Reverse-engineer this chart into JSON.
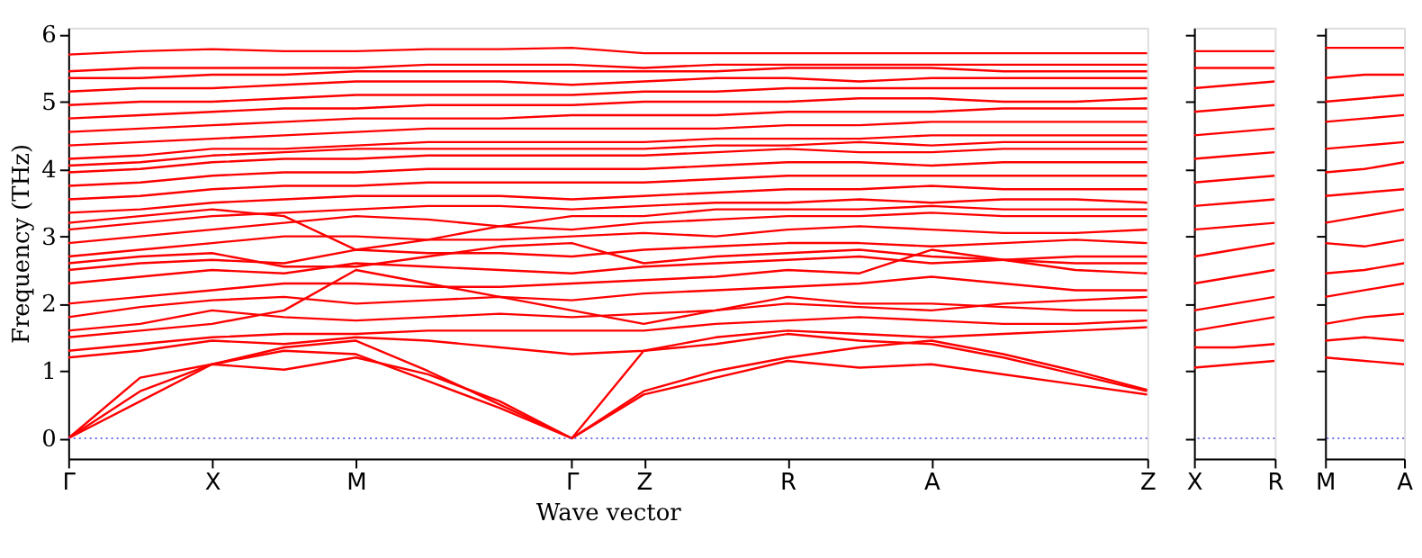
{
  "chart_data": [
    {
      "type": "line",
      "xlabel": "Wave vector",
      "ylabel": "Frequency (THz)",
      "categories": [
        "Γ",
        null,
        "X",
        null,
        "M",
        null,
        null,
        "Γ",
        "Z",
        null,
        "R",
        null,
        "A",
        null,
        null,
        "Z"
      ],
      "ylim": [
        -0.3,
        6.1
      ],
      "yticks": [
        0,
        1,
        2,
        3,
        4,
        5,
        6
      ],
      "line_style": "solid",
      "ref_lines": [
        {
          "axis": "y",
          "value": 0,
          "color": "#4444dd",
          "line_style": "dotted"
        }
      ],
      "series": [
        {
          "color": "#ff0000",
          "values": [
            0,
            0.55,
            1.1,
            1.02,
            1.2,
            0.95,
            0.55,
            0,
            0.65,
            0.9,
            1.15,
            1.05,
            1.1,
            0.95,
            0.8,
            0.65
          ]
        },
        {
          "color": "#ff0000",
          "values": [
            0,
            0.9,
            1.1,
            1.3,
            1.25,
            0.85,
            0.45,
            0,
            1.3,
            1.4,
            1.55,
            1.45,
            1.4,
            1.2,
            0.95,
            0.7
          ]
        },
        {
          "color": "#ff0000",
          "values": [
            0,
            0.7,
            1.1,
            1.35,
            1.45,
            1.0,
            0.5,
            0,
            0.7,
            1.0,
            1.2,
            1.35,
            1.45,
            1.25,
            1.0,
            0.72
          ]
        },
        {
          "color": "#ff0000",
          "values": [
            1.2,
            1.3,
            1.45,
            1.4,
            1.5,
            1.45,
            1.35,
            1.25,
            1.3,
            1.5,
            1.6,
            1.55,
            1.5,
            1.55,
            1.6,
            1.65
          ]
        },
        {
          "color": "#ff0000",
          "values": [
            1.3,
            1.4,
            1.5,
            1.55,
            1.55,
            1.6,
            1.6,
            1.6,
            1.6,
            1.7,
            1.75,
            1.8,
            1.75,
            1.7,
            1.7,
            1.75
          ]
        },
        {
          "color": "#ff0000",
          "values": [
            1.6,
            1.7,
            1.9,
            1.8,
            1.75,
            1.8,
            1.85,
            1.8,
            1.85,
            1.9,
            2.0,
            1.95,
            1.9,
            2.0,
            2.05,
            2.1
          ]
        },
        {
          "color": "#ff0000",
          "values": [
            1.8,
            1.95,
            2.05,
            2.1,
            2.0,
            2.05,
            2.1,
            2.05,
            2.15,
            2.2,
            2.25,
            2.3,
            2.4,
            2.3,
            2.2,
            2.2
          ]
        },
        {
          "color": "#ff0000",
          "values": [
            2.0,
            2.1,
            2.2,
            2.3,
            2.3,
            2.25,
            2.25,
            2.3,
            2.35,
            2.4,
            2.5,
            2.45,
            2.8,
            2.65,
            2.5,
            2.45
          ]
        },
        {
          "color": "#ff0000",
          "values": [
            2.3,
            2.4,
            2.5,
            2.45,
            2.6,
            2.55,
            2.5,
            2.45,
            2.55,
            2.6,
            2.65,
            2.7,
            2.6,
            2.65,
            2.7,
            2.7
          ]
        },
        {
          "color": "#ff0000",
          "values": [
            2.5,
            2.6,
            2.65,
            2.6,
            2.8,
            2.75,
            2.75,
            2.7,
            2.8,
            2.85,
            2.9,
            2.9,
            2.85,
            2.9,
            2.95,
            2.9
          ]
        },
        {
          "color": "#ff0000",
          "values": [
            2.7,
            2.8,
            2.9,
            3.0,
            3.0,
            2.95,
            2.95,
            3.0,
            3.05,
            3.0,
            3.1,
            3.15,
            3.1,
            3.05,
            3.05,
            3.1
          ]
        },
        {
          "color": "#ff0000",
          "values": [
            2.9,
            3.0,
            3.1,
            3.2,
            3.3,
            3.25,
            3.15,
            3.1,
            3.2,
            3.25,
            3.3,
            3.3,
            3.35,
            3.3,
            3.3,
            3.3
          ]
        },
        {
          "color": "#ff0000",
          "values": [
            3.1,
            3.2,
            3.3,
            3.35,
            3.4,
            3.45,
            3.45,
            3.4,
            3.45,
            3.5,
            3.5,
            3.55,
            3.5,
            3.55,
            3.55,
            3.5
          ]
        },
        {
          "color": "#ff0000",
          "values": [
            3.35,
            3.4,
            3.5,
            3.55,
            3.6,
            3.6,
            3.6,
            3.55,
            3.6,
            3.65,
            3.7,
            3.7,
            3.75,
            3.7,
            3.7,
            3.7
          ]
        },
        {
          "color": "#ff0000",
          "values": [
            3.55,
            3.6,
            3.7,
            3.75,
            3.75,
            3.8,
            3.8,
            3.8,
            3.8,
            3.85,
            3.9,
            3.9,
            3.9,
            3.9,
            3.9,
            3.9
          ]
        },
        {
          "color": "#ff0000",
          "values": [
            3.75,
            3.8,
            3.9,
            3.95,
            3.95,
            4.0,
            4.0,
            4.0,
            4.0,
            4.05,
            4.1,
            4.1,
            4.05,
            4.1,
            4.1,
            4.1
          ]
        },
        {
          "color": "#ff0000",
          "values": [
            3.95,
            4.0,
            4.1,
            4.15,
            4.15,
            4.2,
            4.2,
            4.2,
            4.2,
            4.25,
            4.3,
            4.25,
            4.25,
            4.3,
            4.3,
            4.3
          ]
        },
        {
          "color": "#ff0000",
          "values": [
            4.15,
            4.2,
            4.3,
            4.3,
            4.35,
            4.4,
            4.4,
            4.4,
            4.4,
            4.45,
            4.45,
            4.45,
            4.5,
            4.5,
            4.5,
            4.5
          ]
        },
        {
          "color": "#ff0000",
          "values": [
            4.35,
            4.4,
            4.45,
            4.5,
            4.55,
            4.6,
            4.6,
            4.6,
            4.6,
            4.6,
            4.65,
            4.65,
            4.7,
            4.7,
            4.7,
            4.7
          ]
        },
        {
          "color": "#ff0000",
          "values": [
            4.55,
            4.6,
            4.65,
            4.7,
            4.75,
            4.75,
            4.75,
            4.8,
            4.8,
            4.8,
            4.85,
            4.85,
            4.85,
            4.9,
            4.9,
            4.9
          ]
        },
        {
          "color": "#ff0000",
          "values": [
            4.75,
            4.8,
            4.85,
            4.9,
            4.9,
            4.95,
            4.95,
            4.95,
            5.0,
            5.0,
            5.0,
            5.05,
            5.05,
            5.0,
            5.0,
            5.05
          ]
        },
        {
          "color": "#ff0000",
          "values": [
            4.95,
            5.0,
            5.0,
            5.05,
            5.1,
            5.1,
            5.1,
            5.1,
            5.15,
            5.15,
            5.2,
            5.2,
            5.2,
            5.2,
            5.2,
            5.2
          ]
        },
        {
          "color": "#ff0000",
          "values": [
            5.15,
            5.2,
            5.2,
            5.25,
            5.3,
            5.3,
            5.3,
            5.25,
            5.3,
            5.35,
            5.35,
            5.3,
            5.35,
            5.35,
            5.35,
            5.35
          ]
        },
        {
          "color": "#ff0000",
          "values": [
            5.35,
            5.35,
            5.4,
            5.4,
            5.45,
            5.45,
            5.45,
            5.45,
            5.45,
            5.45,
            5.5,
            5.5,
            5.5,
            5.45,
            5.45,
            5.45
          ]
        },
        {
          "color": "#ff0000",
          "values": [
            5.45,
            5.5,
            5.5,
            5.5,
            5.5,
            5.55,
            5.55,
            5.55,
            5.5,
            5.55,
            5.55,
            5.55,
            5.55,
            5.55,
            5.55,
            5.55
          ]
        },
        {
          "color": "#ff0000",
          "values": [
            5.7,
            5.75,
            5.78,
            5.75,
            5.75,
            5.78,
            5.78,
            5.8,
            5.72,
            5.72,
            5.72,
            5.72,
            5.72,
            5.72,
            5.72,
            5.72
          ]
        },
        {
          "color": "#ff0000",
          "values": [
            1.5,
            1.6,
            1.7,
            1.9,
            2.5,
            2.3,
            2.1,
            1.9,
            1.7,
            1.9,
            2.1,
            2.0,
            2.0,
            1.95,
            1.9,
            1.9
          ]
        },
        {
          "color": "#ff0000",
          "values": [
            2.6,
            2.7,
            2.75,
            2.55,
            2.55,
            2.7,
            2.85,
            2.9,
            2.6,
            2.7,
            2.75,
            2.8,
            2.7,
            2.65,
            2.6,
            2.6
          ]
        },
        {
          "color": "#ff0000",
          "values": [
            3.2,
            3.3,
            3.4,
            3.3,
            2.8,
            2.95,
            3.15,
            3.3,
            3.3,
            3.4,
            3.4,
            3.4,
            3.45,
            3.4,
            3.4,
            3.4
          ]
        },
        {
          "color": "#ff0000",
          "values": [
            4.05,
            4.1,
            4.2,
            4.25,
            4.3,
            4.3,
            4.3,
            4.3,
            4.3,
            4.35,
            4.35,
            4.4,
            4.35,
            4.4,
            4.4,
            4.4
          ]
        }
      ]
    },
    {
      "type": "line",
      "categories": [
        "X",
        null,
        "R"
      ],
      "ylim": [
        -0.3,
        6.1
      ],
      "yticks": [
        0,
        1,
        2,
        3,
        4,
        5,
        6
      ],
      "tick_labels": "x",
      "line_style": "solid",
      "ref_lines": [
        {
          "axis": "y",
          "value": 0,
          "color": "#4444dd",
          "line_style": "dotted"
        }
      ],
      "series": [
        {
          "color": "#ff0000",
          "values": [
            1.05,
            1.1,
            1.15
          ]
        },
        {
          "color": "#ff0000",
          "values": [
            1.35,
            1.35,
            1.4
          ]
        },
        {
          "color": "#ff0000",
          "values": [
            1.6,
            1.7,
            1.8
          ]
        },
        {
          "color": "#ff0000",
          "values": [
            1.9,
            2.0,
            2.1
          ]
        },
        {
          "color": "#ff0000",
          "values": [
            2.3,
            2.4,
            2.5
          ]
        },
        {
          "color": "#ff0000",
          "values": [
            2.7,
            2.8,
            2.9
          ]
        },
        {
          "color": "#ff0000",
          "values": [
            3.1,
            3.15,
            3.2
          ]
        },
        {
          "color": "#ff0000",
          "values": [
            3.45,
            3.5,
            3.55
          ]
        },
        {
          "color": "#ff0000",
          "values": [
            3.8,
            3.85,
            3.9
          ]
        },
        {
          "color": "#ff0000",
          "values": [
            4.15,
            4.2,
            4.25
          ]
        },
        {
          "color": "#ff0000",
          "values": [
            4.5,
            4.55,
            4.6
          ]
        },
        {
          "color": "#ff0000",
          "values": [
            4.85,
            4.9,
            4.95
          ]
        },
        {
          "color": "#ff0000",
          "values": [
            5.2,
            5.25,
            5.3
          ]
        },
        {
          "color": "#ff0000",
          "values": [
            5.5,
            5.5,
            5.5
          ]
        },
        {
          "color": "#ff0000",
          "values": [
            5.75,
            5.75,
            5.75
          ]
        }
      ]
    },
    {
      "type": "line",
      "categories": [
        "M",
        null,
        "A"
      ],
      "ylim": [
        -0.3,
        6.1
      ],
      "yticks": [
        0,
        1,
        2,
        3,
        4,
        5,
        6
      ],
      "tick_labels": "x",
      "line_style": "solid",
      "ref_lines": [
        {
          "axis": "y",
          "value": 0,
          "color": "#4444dd",
          "line_style": "dotted"
        }
      ],
      "series": [
        {
          "color": "#ff0000",
          "values": [
            1.2,
            1.15,
            1.1
          ]
        },
        {
          "color": "#ff0000",
          "values": [
            1.45,
            1.5,
            1.45
          ]
        },
        {
          "color": "#ff0000",
          "values": [
            1.7,
            1.8,
            1.85
          ]
        },
        {
          "color": "#ff0000",
          "values": [
            2.1,
            2.2,
            2.3
          ]
        },
        {
          "color": "#ff0000",
          "values": [
            2.45,
            2.5,
            2.6
          ]
        },
        {
          "color": "#ff0000",
          "values": [
            2.9,
            2.85,
            2.95
          ]
        },
        {
          "color": "#ff0000",
          "values": [
            3.2,
            3.3,
            3.4
          ]
        },
        {
          "color": "#ff0000",
          "values": [
            3.6,
            3.65,
            3.7
          ]
        },
        {
          "color": "#ff0000",
          "values": [
            3.95,
            4.0,
            4.1
          ]
        },
        {
          "color": "#ff0000",
          "values": [
            4.3,
            4.35,
            4.4
          ]
        },
        {
          "color": "#ff0000",
          "values": [
            4.7,
            4.75,
            4.8
          ]
        },
        {
          "color": "#ff0000",
          "values": [
            5.0,
            5.05,
            5.1
          ]
        },
        {
          "color": "#ff0000",
          "values": [
            5.35,
            5.4,
            5.4
          ]
        },
        {
          "color": "#ff0000",
          "values": [
            5.8,
            5.8,
            5.8
          ]
        }
      ]
    }
  ]
}
